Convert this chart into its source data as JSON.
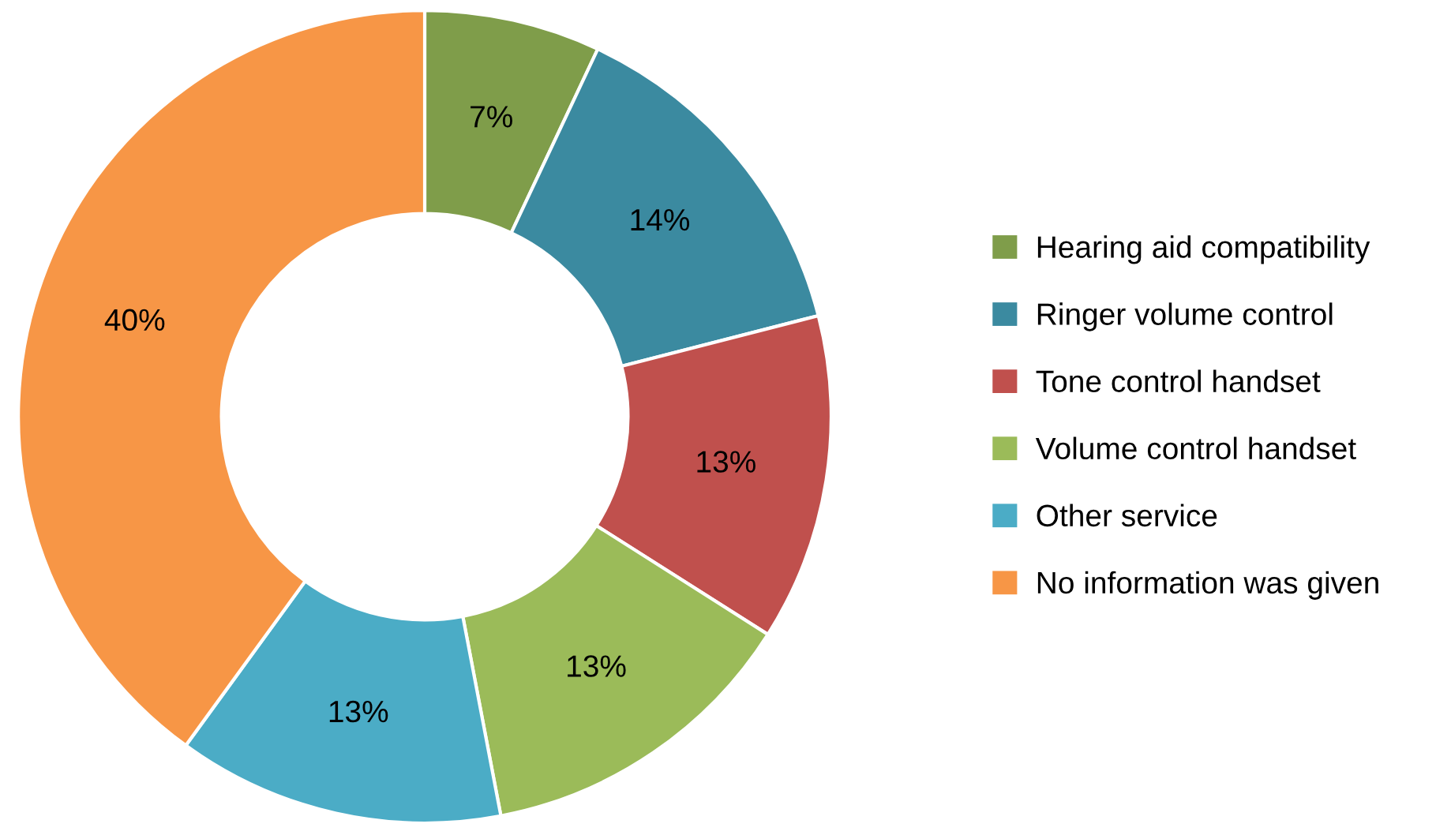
{
  "chart_data": {
    "type": "donut",
    "categories": [
      "Hearing aid compatibility",
      "Ringer volume control",
      "Tone control handset",
      "Volume control handset",
      "Other service",
      "No information was given"
    ],
    "values": [
      7,
      14,
      13,
      13,
      13,
      40
    ],
    "value_labels": [
      "7%",
      "14%",
      "13%",
      "13%",
      "13%",
      "40%"
    ],
    "colors": [
      "#7f9d4a",
      "#3b8aa0",
      "#c0504d",
      "#9bbb59",
      "#4bacc6",
      "#f79646"
    ],
    "legend": "right"
  }
}
